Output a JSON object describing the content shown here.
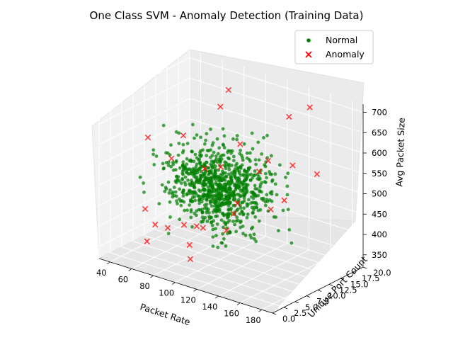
{
  "chart_data": {
    "type": "scatter3d",
    "title": "One Class SVM - Anomaly Detection (Training Data)",
    "xlabel": "Packet Rate",
    "ylabel": "Unique Port Count",
    "zlabel": "Avg Packet Size",
    "xlim": [
      30,
      190
    ],
    "ylim": [
      0,
      20
    ],
    "zlim": [
      320,
      720
    ],
    "xticks": [
      "40",
      "60",
      "80",
      "100",
      "120",
      "140",
      "160",
      "180"
    ],
    "yticks": [
      "0.0",
      "2.5",
      "5.0",
      "7.5",
      "10.0",
      "12.5",
      "15.0",
      "17.5",
      "20.0"
    ],
    "zticks": [
      "350",
      "400",
      "450",
      "500",
      "550",
      "600",
      "650",
      "700"
    ],
    "legend": {
      "position": "top-right",
      "entries": [
        "Normal",
        "Anomaly"
      ]
    },
    "colors": {
      "Normal": "#008000",
      "Anomaly": "#ff0000"
    },
    "series": [
      {
        "name": "Normal",
        "marker": "circle",
        "distribution": {
          "count": 900,
          "x_mean": 100,
          "x_sd": 20,
          "y_mean": 10,
          "y_sd": 3,
          "z_mean": 500,
          "z_sd": 45
        }
      },
      {
        "name": "Anomaly",
        "marker": "x",
        "points": [
          [
            60,
            3,
            450
          ],
          [
            180,
            5,
            560
          ],
          [
            55,
            10,
            530
          ],
          [
            75,
            16,
            640
          ],
          [
            150,
            14,
            570
          ],
          [
            130,
            18,
            650
          ],
          [
            110,
            12,
            600
          ],
          [
            95,
            6,
            420
          ],
          [
            85,
            2,
            430
          ],
          [
            70,
            1,
            390
          ],
          [
            65,
            4,
            410
          ],
          [
            120,
            9,
            480
          ],
          [
            125,
            7,
            470
          ],
          [
            140,
            11,
            590
          ],
          [
            100,
            2,
            450
          ],
          [
            160,
            17,
            540
          ],
          [
            45,
            15,
            550
          ],
          [
            88,
            13,
            520
          ],
          [
            90,
            9,
            540
          ],
          [
            105,
            5,
            430
          ],
          [
            135,
            3,
            460
          ],
          [
            115,
            15,
            520
          ],
          [
            80,
            8,
            350
          ],
          [
            110,
            1,
            380
          ],
          [
            70,
            19,
            660
          ],
          [
            155,
            8,
            500
          ],
          [
            50,
            6,
            600
          ],
          [
            145,
            19,
            680
          ]
        ]
      }
    ]
  }
}
